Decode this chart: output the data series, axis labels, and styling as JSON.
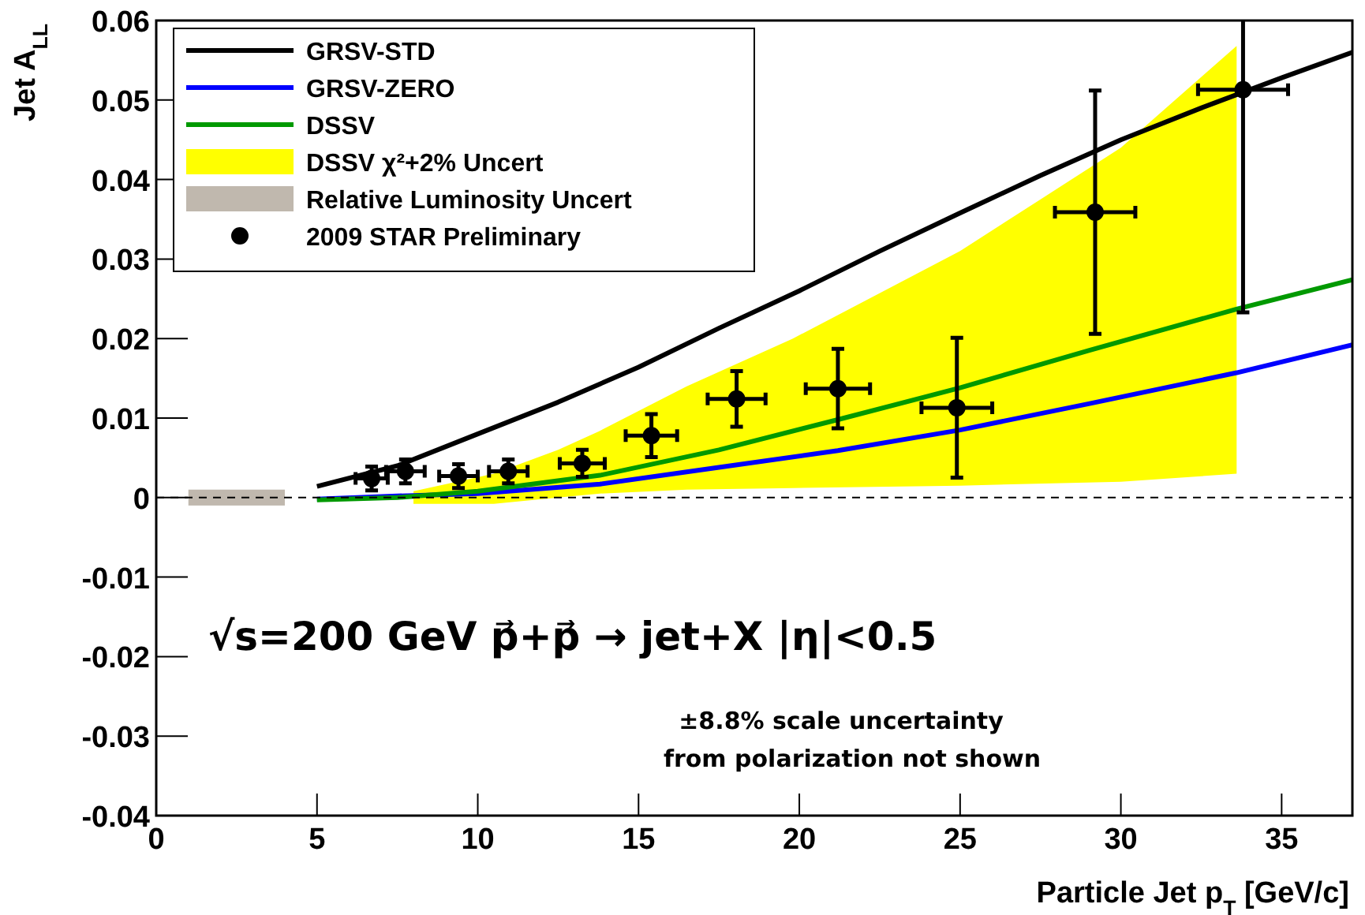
{
  "chart_data": {
    "type": "line",
    "xlabel": "Particle Jet p$_{T}$ [GeV/c]",
    "ylabel": "Jet A$_{LL}$",
    "xlim": [
      0,
      37.2
    ],
    "ylim": [
      -0.04,
      0.06
    ],
    "xticks": [
      0,
      5,
      10,
      15,
      20,
      25,
      30,
      35
    ],
    "yticks": [
      -0.04,
      -0.03,
      -0.02,
      -0.01,
      0,
      0.01,
      0.02,
      0.03,
      0.04,
      0.05,
      0.06
    ],
    "legend": "top left",
    "series": [
      {
        "name": "GRSV-STD",
        "color": "#000000",
        "x": [
          5,
          7.5,
          10,
          12.5,
          15,
          17.5,
          20,
          22.5,
          25,
          27.5,
          30,
          32.5,
          35,
          37.2
        ],
        "values": [
          0.0014,
          0.004,
          0.008,
          0.012,
          0.0164,
          0.0213,
          0.026,
          0.031,
          0.0358,
          0.0405,
          0.045,
          0.049,
          0.0528,
          0.056
        ]
      },
      {
        "name": "GRSV-ZERO",
        "color": "#0000ff",
        "x": [
          5,
          7.5,
          10,
          13.8,
          17.5,
          21.2,
          25,
          29,
          33.6,
          37.2
        ],
        "values": [
          -0.0002,
          0.0002,
          0.0005,
          0.0017,
          0.0038,
          0.0059,
          0.0085,
          0.0118,
          0.0157,
          0.0192
        ]
      },
      {
        "name": "DSSV",
        "color": "#009900",
        "x": [
          5,
          7.5,
          10,
          13.8,
          17.5,
          21.2,
          25,
          29,
          33.6,
          37.2
        ],
        "values": [
          -0.0003,
          0,
          0.0008,
          0.0028,
          0.006,
          0.0098,
          0.0138,
          0.0185,
          0.0237,
          0.0274
        ]
      },
      {
        "name": "DSSV χ²+2% Uncert",
        "type": "area",
        "color": "#ffff00",
        "x": [
          8,
          10.5,
          12.5,
          13.8,
          16.5,
          19.8,
          25,
          30,
          33.6
        ],
        "values": [
          null,
          null,
          null,
          null,
          null,
          null,
          null,
          null,
          null
        ],
        "upper": [
          0.0008,
          0.003,
          0.006,
          0.0084,
          0.014,
          0.02,
          0.031,
          0.044,
          0.0568
        ],
        "lower": [
          -0.0008,
          -0.0008,
          0,
          0.0005,
          0.001,
          0.0012,
          0.0015,
          0.002,
          0.003
        ]
      },
      {
        "name": "Relative Luminosity Uncert",
        "type": "bar",
        "color": "#c0b8ae",
        "x": [
          2.5
        ],
        "values": [
          0.002
        ],
        "base": [
          -0.001
        ]
      },
      {
        "name": "2009 STAR Preliminary",
        "type": "scatter",
        "marker": "circle",
        "color": "#000000",
        "x": [
          6.7,
          7.75,
          9.4,
          10.95,
          13.25,
          15.4,
          18.05,
          21.2,
          24.9,
          29.2,
          33.8
        ],
        "values": [
          0.0024,
          0.0033,
          0.0027,
          0.0033,
          0.0043,
          0.0078,
          0.0124,
          0.0137,
          0.0113,
          0.0359,
          0.0513
        ],
        "errors": [
          0.0015,
          0.0015,
          0.0015,
          0.0015,
          0.0017,
          0.0027,
          0.0035,
          0.005,
          0.0088,
          0.0153,
          0.028
        ],
        "xerrors": [
          0.5,
          0.6,
          0.6,
          0.6,
          0.7,
          0.8,
          0.9,
          1.0,
          1.1,
          1.25,
          1.4
        ]
      }
    ],
    "ref_lines": [
      {
        "axis": "y",
        "value": 0,
        "line_style": "dashed",
        "color": "#000000"
      }
    ],
    "annotations": [
      "√s=200 GeV   p⃗+p⃗ → jet+X   |η|<0.5",
      "±8.8% scale uncertainty",
      "from polarization not shown"
    ]
  }
}
